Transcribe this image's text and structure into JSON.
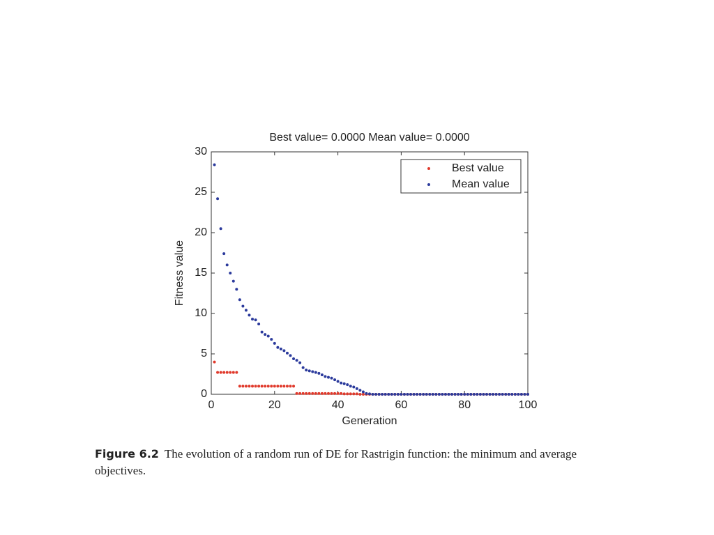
{
  "chart_data": {
    "type": "scatter",
    "title": "Best value= 0.0000  Mean value= 0.0000",
    "xlabel": "Generation",
    "ylabel": "Fitness value",
    "x": [
      1,
      2,
      3,
      4,
      5,
      6,
      7,
      8,
      9,
      10,
      11,
      12,
      13,
      14,
      15,
      16,
      17,
      18,
      19,
      20,
      21,
      22,
      23,
      24,
      25,
      26,
      27,
      28,
      29,
      30,
      31,
      32,
      33,
      34,
      35,
      36,
      37,
      38,
      39,
      40,
      41,
      42,
      43,
      44,
      45,
      46,
      47,
      48,
      49,
      50,
      51,
      52,
      53,
      54,
      55,
      56,
      57,
      58,
      59,
      60,
      61,
      62,
      63,
      64,
      65,
      66,
      67,
      68,
      69,
      70,
      71,
      72,
      73,
      74,
      75,
      76,
      77,
      78,
      79,
      80,
      81,
      82,
      83,
      84,
      85,
      86,
      87,
      88,
      89,
      90,
      91,
      92,
      93,
      94,
      95,
      96,
      97,
      98,
      99,
      100
    ],
    "series": [
      {
        "name": "Best value",
        "color": "#e0392b",
        "values": [
          4.0,
          2.7,
          2.7,
          2.7,
          2.7,
          2.7,
          2.7,
          2.7,
          1.0,
          1.0,
          1.0,
          1.0,
          1.0,
          1.0,
          1.0,
          1.0,
          1.0,
          1.0,
          1.0,
          1.0,
          1.0,
          1.0,
          1.0,
          1.0,
          1.0,
          1.0,
          0.1,
          0.1,
          0.1,
          0.1,
          0.1,
          0.1,
          0.1,
          0.1,
          0.1,
          0.1,
          0.1,
          0.1,
          0.1,
          0.1,
          0.1,
          0.05,
          0.05,
          0.05,
          0.05,
          0.05,
          0,
          0,
          0,
          0,
          0,
          0,
          0,
          0,
          0,
          0,
          0,
          0,
          0,
          0,
          0,
          0,
          0,
          0,
          0,
          0,
          0,
          0,
          0,
          0,
          0,
          0,
          0,
          0,
          0,
          0,
          0,
          0,
          0,
          0,
          0,
          0,
          0,
          0,
          0,
          0,
          0,
          0,
          0,
          0,
          0,
          0,
          0,
          0,
          0,
          0,
          0,
          0,
          0,
          0
        ]
      },
      {
        "name": "Mean value",
        "color": "#2b3a9c",
        "values": [
          28.4,
          24.2,
          20.5,
          17.4,
          16.0,
          15.0,
          14.0,
          13.0,
          11.7,
          10.9,
          10.4,
          9.8,
          9.3,
          9.2,
          8.7,
          7.7,
          7.4,
          7.2,
          6.8,
          6.3,
          5.8,
          5.6,
          5.4,
          5.1,
          4.8,
          4.4,
          4.2,
          3.9,
          3.3,
          3.0,
          2.9,
          2.8,
          2.7,
          2.6,
          2.4,
          2.2,
          2.1,
          2.0,
          1.8,
          1.6,
          1.4,
          1.3,
          1.2,
          1.0,
          0.9,
          0.7,
          0.5,
          0.3,
          0.1,
          0.05,
          0,
          0,
          0,
          0,
          0,
          0,
          0,
          0,
          0,
          0,
          0,
          0,
          0,
          0,
          0,
          0,
          0,
          0,
          0,
          0,
          0,
          0,
          0,
          0,
          0,
          0,
          0,
          0,
          0,
          0,
          0,
          0,
          0,
          0,
          0,
          0,
          0,
          0,
          0,
          0,
          0,
          0,
          0,
          0,
          0,
          0,
          0,
          0,
          0,
          0
        ]
      }
    ],
    "xlim": [
      0,
      100
    ],
    "xticks": [
      0,
      20,
      40,
      60,
      80,
      100
    ],
    "ylim": [
      0,
      30
    ],
    "yticks": [
      0,
      5,
      10,
      15,
      20,
      25,
      30
    ],
    "grid": false,
    "legend": "top-right"
  },
  "caption": {
    "label": "Figure 6.2",
    "text": "The evolution of a random run of DE for Rastrigin function: the minimum and average objectives."
  }
}
